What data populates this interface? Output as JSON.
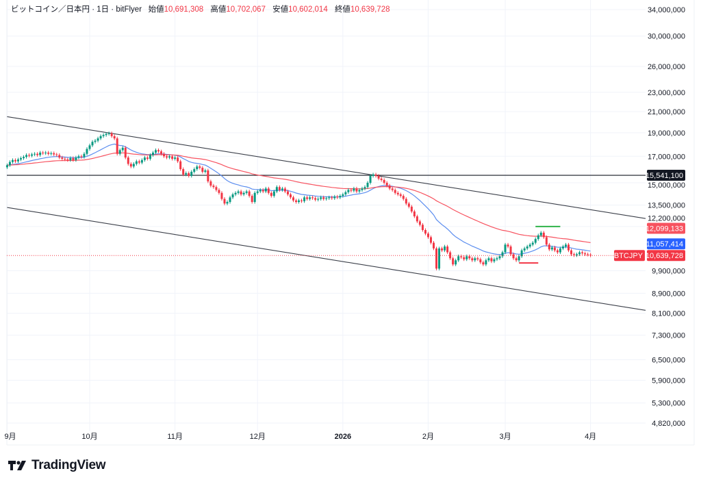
{
  "header": {
    "symbol_desc": "ビットコイン／日本円 · 1日 · bitFlyer",
    "open_label": "始値",
    "open": "10,691,308",
    "high_label": "高値",
    "high": "10,702,067",
    "low_label": "安値",
    "low": "10,602,014",
    "close_label": "終値",
    "close": "10,639,728"
  },
  "branding": {
    "name": "TradingView"
  },
  "colors": {
    "up": "#089981",
    "down": "#f23645",
    "ma_short": "#5b8def",
    "ma_long": "#f7525f",
    "line": "#131722",
    "grid": "#f0f3fa"
  },
  "chart_data": {
    "type": "candlestick",
    "symbol": "BTCJPY",
    "y_scale": "log",
    "ylim": [
      4820000,
      34000000
    ],
    "start_date": "2025-09-01",
    "interval": "1D",
    "closes": [
      16300000.0,
      16550000.0,
      16700000.0,
      16600000.0,
      16750000.0,
      16850000.0,
      16950000.0,
      17100000.0,
      17050000.0,
      17150000.0,
      17200000.0,
      17100000.0,
      17300000.0,
      17250000.0,
      17300000.0,
      17200000.0,
      17250000.0,
      17150000.0,
      17100000.0,
      16900000.0,
      16800000.0,
      16750000.0,
      16700000.0,
      16850000.0,
      16700000.0,
      16900000.0,
      17000000.0,
      16950000.0,
      17200000.0,
      17600000.0,
      17900000.0,
      18200000.0,
      18300000.0,
      18500000.0,
      18700000.0,
      18800000.0,
      18900000.0,
      18950000.0,
      18700000.0,
      18500000.0,
      17200000.0,
      17500000.0,
      17700000.0,
      16900000.0,
      16400000.0,
      16200000.0,
      16400000.0,
      16600000.0,
      16500000.0,
      16700000.0,
      16900000.0,
      16800000.0,
      17100000.0,
      17300000.0,
      17500000.0,
      17400000.0,
      17200000.0,
      17000000.0,
      16900000.0,
      17000000.0,
      16800000.0,
      16900000.0,
      16600000.0,
      16000000.0,
      15600000.0,
      15700000.0,
      15500000.0,
      15800000.0,
      16000000.0,
      16200000.0,
      16100000.0,
      15800000.0,
      15900000.0,
      15100000.0,
      14800000.0,
      14700000.0,
      14500000.0,
      14300000.0,
      13900000.0,
      13600000.0,
      13700000.0,
      14000000.0,
      14200000.0,
      14300000.0,
      14400000.0,
      14200000.0,
      14300000.0,
      14400000.0,
      14100000.0,
      13700000.0,
      14300000.0,
      14400000.0,
      14500000.0,
      14400000.0,
      14600000.0,
      14300000.0,
      14100000.0,
      14400000.0,
      14700000.0,
      14500000.0,
      14600000.0,
      14400000.0,
      14200000.0,
      14000000.0,
      13800000.0,
      13700000.0,
      13800000.0,
      13750000.0,
      14000000.0,
      13900000.0,
      14000000.0,
      13950000.0,
      13850000.0,
      13900000.0,
      14000000.0,
      13900000.0,
      13950000.0,
      14000000.0,
      13950000.0,
      14050000.0,
      14000000.0,
      14100000.0,
      14200000.0,
      14350000.0,
      14500000.0,
      14450000.0,
      14600000.0,
      14400000.0,
      14500000.0,
      14600000.0,
      14700000.0,
      15000000.0,
      15500000.0,
      15600000.0,
      15500000.0,
      15300000.0,
      15200000.0,
      15000000.0,
      14800000.0,
      14600000.0,
      14500000.0,
      14300000.0,
      14200000.0,
      14100000.0,
      13900000.0,
      13600000.0,
      13400000.0,
      13100000.0,
      12800000.0,
      12500000.0,
      12300000.0,
      12000000.0,
      11800000.0,
      11600000.0,
      11300000.0,
      11000000.0,
      10000000.0,
      11000000.0,
      10900000.0,
      11100000.0,
      10800000.0,
      10500000.0,
      10200000.0,
      10400000.0,
      10600000.0,
      10550000.0,
      10450000.0,
      10600000.0,
      10500000.0,
      10400000.0,
      10500000.0,
      10450000.0,
      10300000.0,
      10200000.0,
      10400000.0,
      10500000.0,
      10350000.0,
      10450000.0,
      10500000.0,
      10600000.0,
      10800000.0,
      11200000.0,
      11100000.0,
      10700000.0,
      10500000.0,
      10400000.0,
      10600000.0,
      10900000.0,
      11000000.0,
      11100000.0,
      11200000.0,
      11300000.0,
      11500000.0,
      11700000.0,
      11850000.0,
      11600000.0,
      11200000.0,
      10950000.0,
      11050000.0,
      10900000.0,
      10800000.0,
      11000000.0,
      11100000.0,
      11200000.0,
      10900000.0,
      10700000.0,
      10650000.0,
      10700000.0,
      10800000.0,
      10750000.0,
      10700000.0,
      10680000.0,
      10639728
    ],
    "moving_averages": [
      {
        "color": "#5b8def",
        "last_value": 11057414,
        "last_label": "11,057,414"
      },
      {
        "color": "#f7525f",
        "last_value": 12099133,
        "last_label": "12,099,133"
      }
    ],
    "last_price": {
      "value": 10639728,
      "label": "10,639,728",
      "symbol": "BTCJPY"
    },
    "horizontal_line": {
      "value": 15541100,
      "label": "15,541,100"
    },
    "trendlines": [
      {
        "from": [
          "2025-09-01",
          20500000
        ],
        "to": [
          "2026-04-21",
          12670000
        ]
      },
      {
        "from": [
          "2025-09-01",
          13350000
        ],
        "to": [
          "2026-04-21",
          8210000
        ]
      }
    ],
    "markers": [
      {
        "color": "#2fb24a",
        "from": "2026-03-12",
        "to": "2026-03-21",
        "value": 12200000
      },
      {
        "color": "#f23645",
        "from": "2026-03-06",
        "to": "2026-03-13",
        "value": 10270000
      }
    ],
    "y_ticks": [
      {
        "v": 34000000,
        "t": "34,000,000"
      },
      {
        "v": 30000000,
        "t": "30,000,000"
      },
      {
        "v": 26000000,
        "t": "26,000,000"
      },
      {
        "v": 23000000,
        "t": "23,000,000"
      },
      {
        "v": 21000000,
        "t": "21,000,000"
      },
      {
        "v": 19000000,
        "t": "19,000,000"
      },
      {
        "v": 17000000,
        "t": "17,000,000"
      },
      {
        "v": 15000000,
        "t": "15,000,000"
      },
      {
        "v": 13500000,
        "t": "13,500,000"
      },
      {
        "v": 12200000,
        "t": "12,200,000"
      },
      {
        "v": 9900000,
        "t": "9,900,000"
      },
      {
        "v": 8900000,
        "t": "8,900,000"
      },
      {
        "v": 8100000,
        "t": "8,100,000"
      },
      {
        "v": 7300000,
        "t": "7,300,000"
      },
      {
        "v": 6500000,
        "t": "6,500,000"
      },
      {
        "v": 5900000,
        "t": "5,900,000"
      },
      {
        "v": 5300000,
        "t": "5,300,000"
      },
      {
        "v": 4820000,
        "t": "4,820,000"
      }
    ],
    "x_ticks": [
      {
        "d": "2025-09-01",
        "t": "9月"
      },
      {
        "d": "2025-10-01",
        "t": "10月"
      },
      {
        "d": "2025-11-01",
        "t": "11月"
      },
      {
        "d": "2025-12-01",
        "t": "12月"
      },
      {
        "d": "2026-01-01",
        "t": "2026",
        "bold": true
      },
      {
        "d": "2026-02-01",
        "t": "2月"
      },
      {
        "d": "2026-03-01",
        "t": "3月"
      },
      {
        "d": "2026-04-01",
        "t": "4月"
      }
    ]
  }
}
